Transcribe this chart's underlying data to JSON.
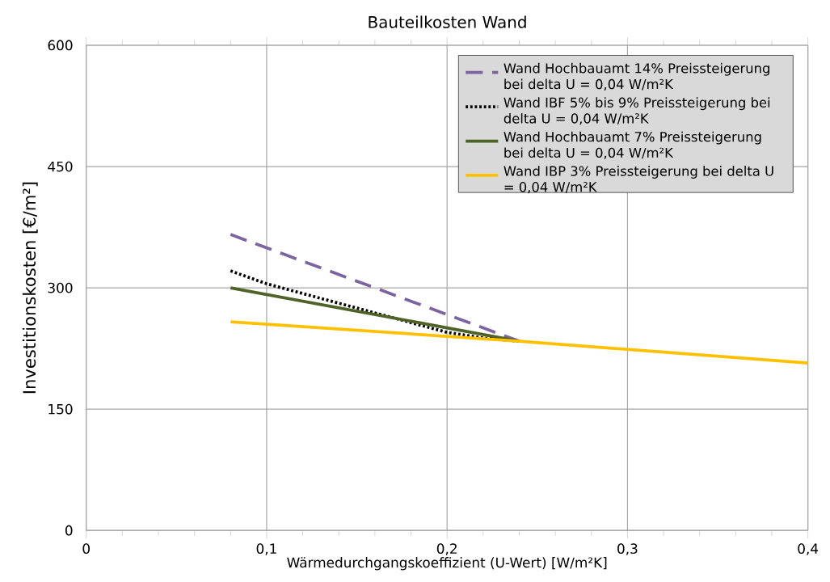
{
  "chart_data": {
    "type": "line",
    "title": "Bauteilkosten Wand",
    "xlabel": "Wärmedurchgangskoeffizient (U-Wert)  [W/m²K]",
    "ylabel": "Investitionskosten [€/m²]",
    "xlim": [
      0,
      0.4
    ],
    "ylim": [
      0,
      600
    ],
    "xticks": [
      0,
      {
        "value": 0.1,
        "label": "0,1"
      },
      {
        "value": 0.2,
        "label": "0,2"
      },
      {
        "value": 0.3,
        "label": "0,3"
      },
      {
        "value": 0.4,
        "label": "0,4"
      }
    ],
    "yticks": [
      0,
      150,
      300,
      450,
      600
    ],
    "grid": true,
    "legend": "top right",
    "marker": "none",
    "series": [
      {
        "name": "Wand Hochbauamt 14% Preissteigerung bei delta U = 0,04 W/m²K",
        "color": "#7b64a0",
        "line_style": "dashed",
        "x": [
          0.08,
          0.24
        ],
        "values": [
          366,
          234
        ]
      },
      {
        "name": "Wand IBF 5% bis 9% Preissteigerung bei delta U = 0,04 W/m²K",
        "color": "#000000",
        "line_style": "dotted",
        "x": [
          0.08,
          0.1,
          0.15,
          0.2,
          0.22,
          0.24
        ],
        "values": [
          321,
          305,
          275,
          245,
          238,
          234
        ]
      },
      {
        "name": "Wand Hochbauamt 7% Preissteigerung bei delta U = 0,04 W/m²K",
        "color": "#4f6228",
        "line_style": "solid",
        "x": [
          0.08,
          0.24
        ],
        "values": [
          300,
          234
        ]
      },
      {
        "name": "Wand IBP 3% Preissteigerung bei delta U = 0,04 W/m²K",
        "color": "#ffc000",
        "line_style": "solid",
        "x": [
          0.08,
          0.24,
          0.4
        ],
        "values": [
          258,
          234,
          207
        ]
      }
    ]
  }
}
